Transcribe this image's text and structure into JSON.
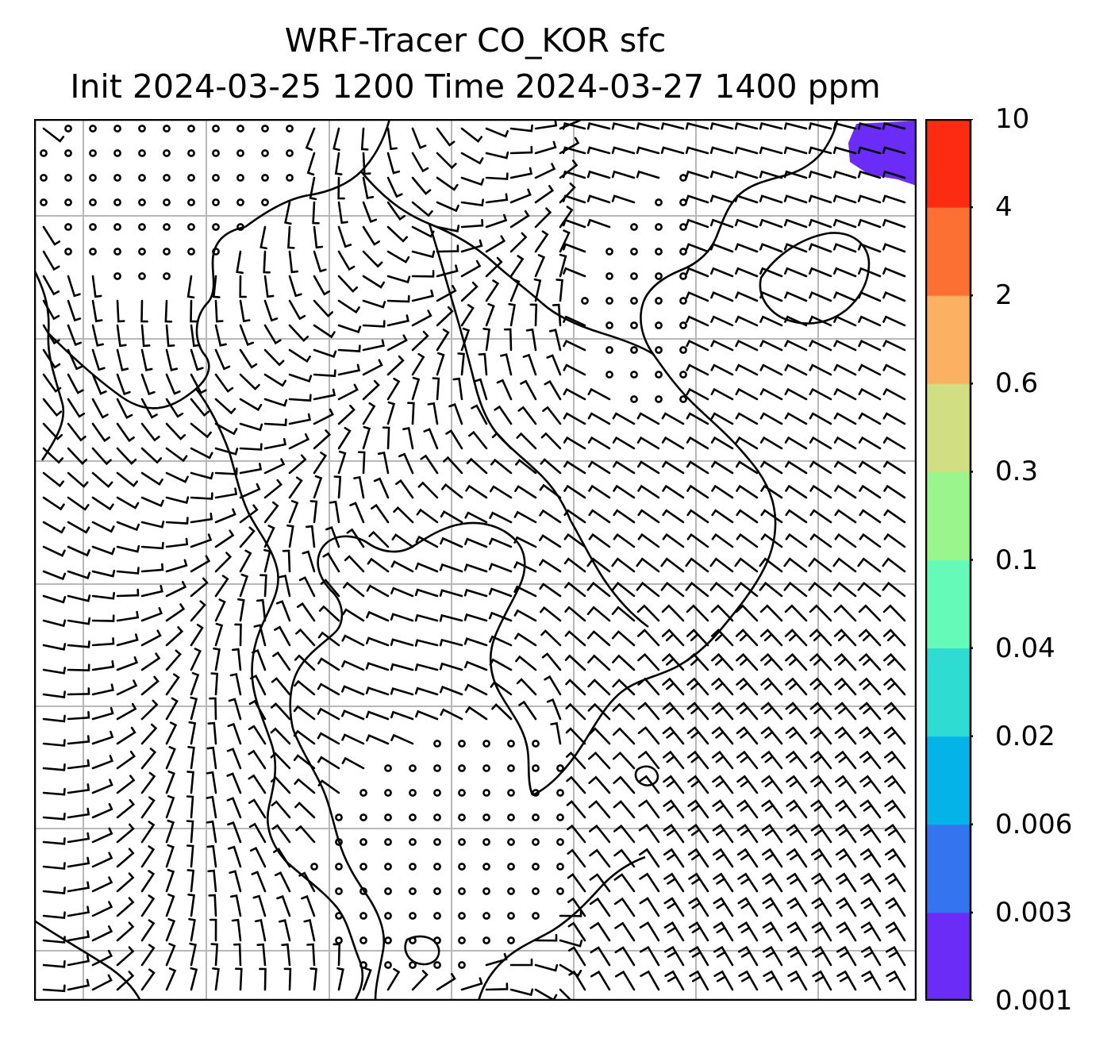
{
  "title": {
    "line1": "WRF-Tracer CO_KOR sfc",
    "line2": "Init 2024-03-25 1200 Time 2024-03-27 1400 ppm"
  },
  "colorbar": {
    "levels": [
      "0.001",
      "0.003",
      "0.006",
      "0.02",
      "0.04",
      "0.1",
      "0.3",
      "0.6",
      "2",
      "4",
      "10"
    ],
    "colors": [
      "#6a2cf6",
      "#3474ee",
      "#04b3e8",
      "#2fdcd2",
      "#65fab8",
      "#9af58c",
      "#d2de82",
      "#fcb062",
      "#fd7034",
      "#fd2b12"
    ]
  },
  "map": {
    "tracer_region_color": "#6a2cf6",
    "gridline_color": "#b8b8b8",
    "coastline_color": "#000000"
  }
}
